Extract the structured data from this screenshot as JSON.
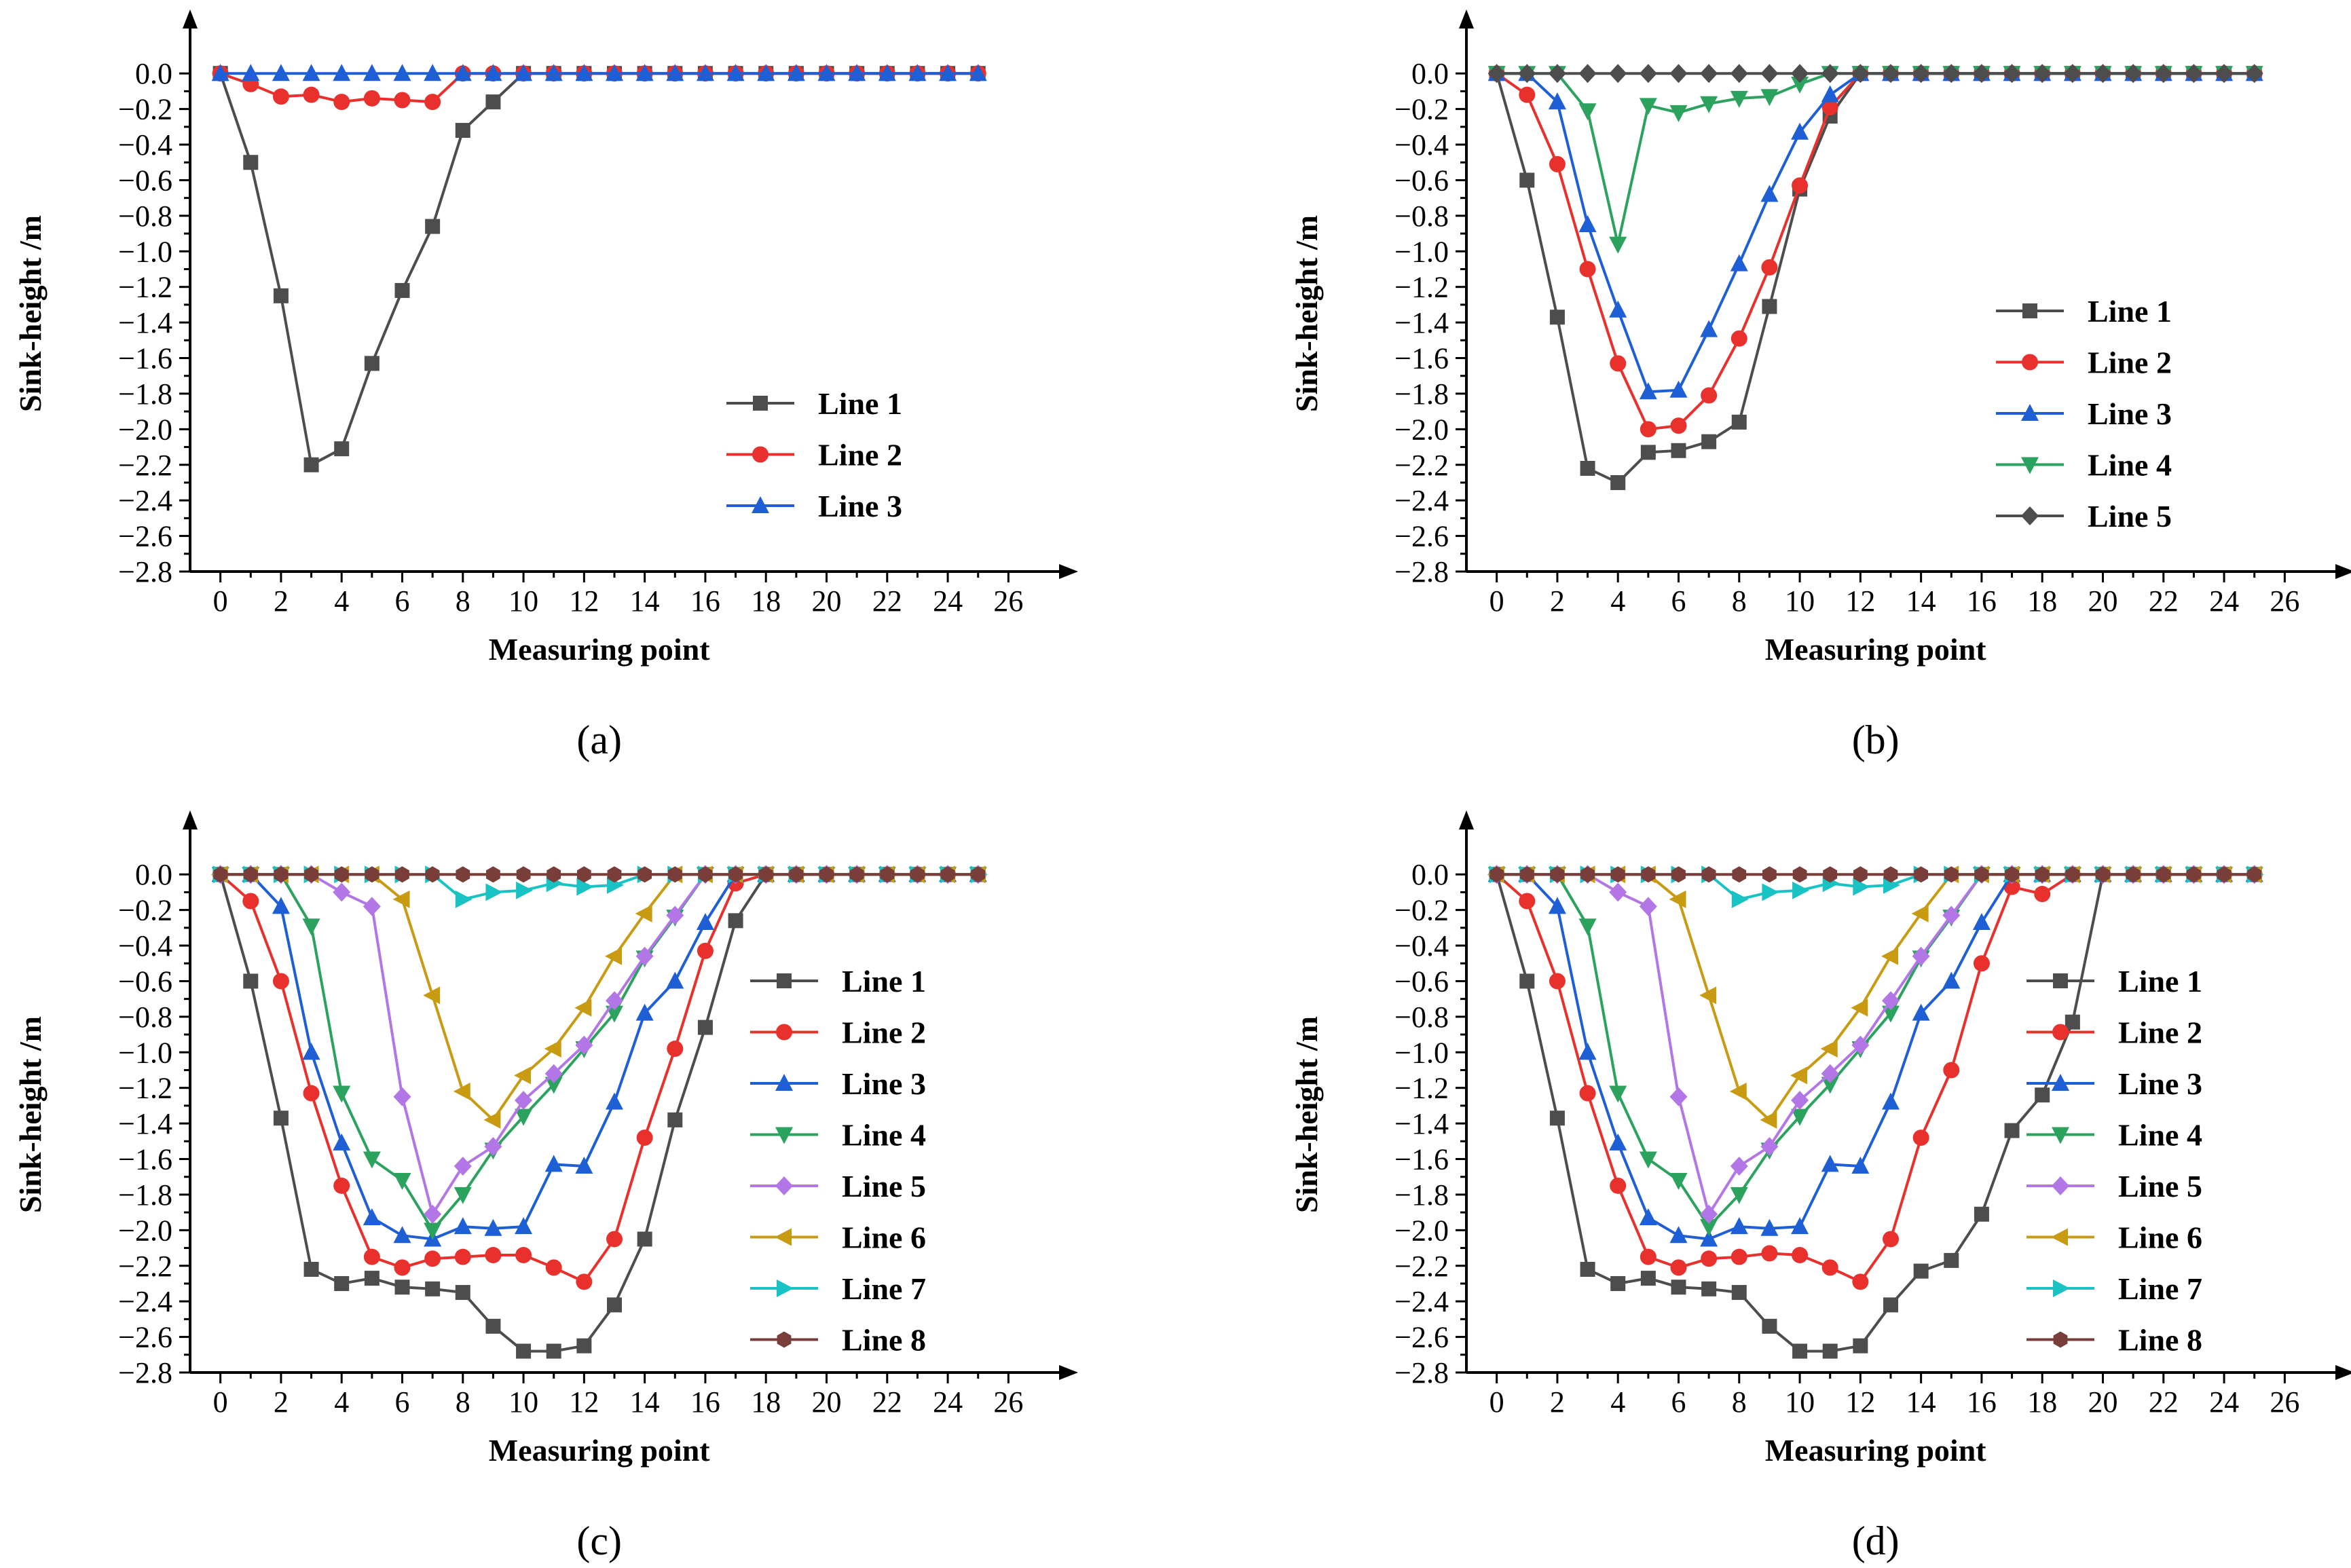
{
  "chart_data": [
    {
      "type": "line",
      "panel_label": "(a)",
      "xlabel": "Measuring point",
      "ylabel": "Sink-height /m",
      "xlim": [
        -1,
        27
      ],
      "ylim": [
        -2.8,
        0.1
      ],
      "xticks": [
        "0",
        "2",
        "4",
        "6",
        "8",
        "10",
        "12",
        "14",
        "16",
        "18",
        "20",
        "22",
        "24",
        "26"
      ],
      "yticks": [
        "0.0",
        "-0.2",
        "-0.4",
        "-0.6",
        "-0.8",
        "-1.0",
        "-1.2",
        "-1.4",
        "-1.6",
        "-1.8",
        "-2.0",
        "-2.2",
        "-2.4",
        "-2.6",
        "-2.8"
      ],
      "legend_position": "right",
      "x": [
        0,
        1,
        2,
        3,
        4,
        5,
        6,
        7,
        8,
        9,
        10,
        11,
        12,
        13,
        14,
        15,
        16,
        17,
        18,
        19,
        20,
        21,
        22,
        23,
        24,
        25
      ],
      "series": [
        {
          "name": "Line 1",
          "color": "#4d4d4d",
          "marker": "square",
          "values": [
            0,
            -0.5,
            -1.25,
            -2.2,
            -2.11,
            -1.63,
            -1.22,
            -0.86,
            -0.32,
            -0.16,
            0,
            0,
            0,
            0,
            0,
            0,
            0,
            0,
            0,
            0,
            0,
            0,
            0,
            0,
            0,
            0
          ]
        },
        {
          "name": "Line 2",
          "color": "#e8302c",
          "marker": "circle",
          "values": [
            0,
            -0.06,
            -0.13,
            -0.12,
            -0.16,
            -0.14,
            -0.15,
            -0.16,
            0,
            0,
            0,
            0,
            0,
            0,
            0,
            0,
            0,
            0,
            0,
            0,
            0,
            0,
            0,
            0,
            0,
            0
          ]
        },
        {
          "name": "Line 3",
          "color": "#1f5fd6",
          "marker": "triangle-up",
          "values": [
            0,
            0,
            0,
            0,
            0,
            0,
            0,
            0,
            0,
            0,
            0,
            0,
            0,
            0,
            0,
            0,
            0,
            0,
            0,
            0,
            0,
            0,
            0,
            0,
            0,
            0
          ]
        }
      ]
    },
    {
      "type": "line",
      "panel_label": "(b)",
      "xlabel": "Measuring point",
      "ylabel": "Sink-height /m",
      "xlim": [
        -1,
        27
      ],
      "ylim": [
        -2.8,
        0.1
      ],
      "xticks": [
        "0",
        "2",
        "4",
        "6",
        "8",
        "10",
        "12",
        "14",
        "16",
        "18",
        "20",
        "22",
        "24",
        "26"
      ],
      "yticks": [
        "0.0",
        "-0.2",
        "-0.4",
        "-0.6",
        "-0.8",
        "-1.0",
        "-1.2",
        "-1.4",
        "-1.6",
        "-1.8",
        "-2.0",
        "-2.2",
        "-2.4",
        "-2.6",
        "-2.8"
      ],
      "legend_position": "right",
      "x": [
        0,
        1,
        2,
        3,
        4,
        5,
        6,
        7,
        8,
        9,
        10,
        11,
        12,
        13,
        14,
        15,
        16,
        17,
        18,
        19,
        20,
        21,
        22,
        23,
        24,
        25
      ],
      "series": [
        {
          "name": "Line 1",
          "color": "#4d4d4d",
          "marker": "square",
          "values": [
            0,
            -0.6,
            -1.37,
            -2.22,
            -2.3,
            -2.13,
            -2.12,
            -2.07,
            -1.96,
            -1.31,
            -0.65,
            -0.24,
            0,
            0,
            0,
            0,
            0,
            0,
            0,
            0,
            0,
            0,
            0,
            0,
            0,
            0
          ]
        },
        {
          "name": "Line 2",
          "color": "#e8302c",
          "marker": "circle",
          "values": [
            0,
            -0.12,
            -0.51,
            -1.1,
            -1.63,
            -2.0,
            -1.98,
            -1.81,
            -1.49,
            -1.09,
            -0.63,
            -0.19,
            0,
            0,
            0,
            0,
            0,
            0,
            0,
            0,
            0,
            0,
            0,
            0,
            0,
            0
          ]
        },
        {
          "name": "Line 3",
          "color": "#1f5fd6",
          "marker": "triangle-up",
          "values": [
            0,
            0,
            -0.16,
            -0.85,
            -1.33,
            -1.79,
            -1.78,
            -1.44,
            -1.07,
            -0.68,
            -0.33,
            -0.12,
            0,
            0,
            0,
            0,
            0,
            0,
            0,
            0,
            0,
            0,
            0,
            0,
            0,
            0
          ]
        },
        {
          "name": "Line 4",
          "color": "#2ca25f",
          "marker": "triangle-down",
          "values": [
            0,
            0,
            0,
            -0.21,
            -0.96,
            -0.18,
            -0.22,
            -0.17,
            -0.14,
            -0.13,
            -0.06,
            0,
            0,
            0,
            0,
            0,
            0,
            0,
            0,
            0,
            0,
            0,
            0,
            0,
            0,
            0
          ]
        },
        {
          "name": "Line 5",
          "color": "#4d4d4d",
          "marker": "diamond",
          "values": [
            0,
            0,
            0,
            0,
            0,
            0,
            0,
            0,
            0,
            0,
            0,
            0,
            0,
            0,
            0,
            0,
            0,
            0,
            0,
            0,
            0,
            0,
            0,
            0,
            0,
            0
          ]
        }
      ]
    },
    {
      "type": "line",
      "panel_label": "(c)",
      "xlabel": "Measuring point",
      "ylabel": "Sink-height /m",
      "xlim": [
        -1,
        27
      ],
      "ylim": [
        -2.8,
        0.1
      ],
      "xticks": [
        "0",
        "2",
        "4",
        "6",
        "8",
        "10",
        "12",
        "14",
        "16",
        "18",
        "20",
        "22",
        "24",
        "26"
      ],
      "yticks": [
        "0.0",
        "-0.2",
        "-0.4",
        "-0.6",
        "-0.8",
        "-1.0",
        "-1.2",
        "-1.4",
        "-1.6",
        "-1.8",
        "-2.0",
        "-2.2",
        "-2.4",
        "-2.6",
        "-2.8"
      ],
      "legend_position": "right",
      "x": [
        0,
        1,
        2,
        3,
        4,
        5,
        6,
        7,
        8,
        9,
        10,
        11,
        12,
        13,
        14,
        15,
        16,
        17,
        18,
        19,
        20,
        21,
        22,
        23,
        24,
        25
      ],
      "series": [
        {
          "name": "Line 1",
          "color": "#4d4d4d",
          "marker": "square",
          "values": [
            0,
            -0.6,
            -1.37,
            -2.22,
            -2.3,
            -2.27,
            -2.32,
            -2.33,
            -2.35,
            -2.54,
            -2.68,
            -2.68,
            -2.65,
            -2.42,
            -2.05,
            -1.38,
            -0.86,
            -0.26,
            0,
            0,
            0,
            0,
            0,
            0,
            0,
            0
          ]
        },
        {
          "name": "Line 2",
          "color": "#e8302c",
          "marker": "circle",
          "values": [
            0,
            -0.15,
            -0.6,
            -1.23,
            -1.75,
            -2.15,
            -2.21,
            -2.16,
            -2.15,
            -2.14,
            -2.14,
            -2.21,
            -2.29,
            -2.05,
            -1.48,
            -0.98,
            -0.43,
            -0.05,
            0,
            0,
            0,
            0,
            0,
            0,
            0,
            0
          ]
        },
        {
          "name": "Line 3",
          "color": "#1f5fd6",
          "marker": "triangle-up",
          "values": [
            0,
            0,
            -0.18,
            -1.0,
            -1.51,
            -1.93,
            -2.03,
            -2.05,
            -1.98,
            -1.99,
            -1.98,
            -1.63,
            -1.64,
            -1.28,
            -0.78,
            -0.6,
            -0.27,
            0,
            0,
            0,
            0,
            0,
            0,
            0,
            0,
            0
          ]
        },
        {
          "name": "Line 4",
          "color": "#2ca25f",
          "marker": "triangle-down",
          "values": [
            0,
            0,
            0,
            -0.29,
            -1.23,
            -1.6,
            -1.72,
            -2.0,
            -1.8,
            -1.55,
            -1.36,
            -1.18,
            -0.98,
            -0.78,
            -0.47,
            -0.24,
            0,
            0,
            0,
            0,
            0,
            0,
            0,
            0,
            0,
            0
          ]
        },
        {
          "name": "Line 5",
          "color": "#b276e6",
          "marker": "diamond",
          "values": [
            0,
            0,
            0,
            0,
            -0.1,
            -0.18,
            -1.25,
            -1.91,
            -1.64,
            -1.53,
            -1.27,
            -1.12,
            -0.96,
            -0.71,
            -0.46,
            -0.23,
            0,
            0,
            0,
            0,
            0,
            0,
            0,
            0,
            0,
            0
          ]
        },
        {
          "name": "Line 6",
          "color": "#c89b12",
          "marker": "triangle-left",
          "values": [
            0,
            0,
            0,
            0,
            0,
            0,
            -0.14,
            -0.68,
            -1.22,
            -1.38,
            -1.13,
            -0.98,
            -0.75,
            -0.46,
            -0.22,
            0,
            0,
            0,
            0,
            0,
            0,
            0,
            0,
            0,
            0,
            0
          ]
        },
        {
          "name": "Line 7",
          "color": "#19c3c3",
          "marker": "triangle-right",
          "values": [
            0,
            0,
            0,
            0,
            0,
            0,
            0,
            0,
            -0.14,
            -0.1,
            -0.09,
            -0.05,
            -0.07,
            -0.06,
            0,
            0,
            0,
            0,
            0,
            0,
            0,
            0,
            0,
            0,
            0,
            0
          ]
        },
        {
          "name": "Line 8",
          "color": "#7a3e3a",
          "marker": "hexagon",
          "values": [
            0,
            0,
            0,
            0,
            0,
            0,
            0,
            0,
            0,
            0,
            0,
            0,
            0,
            0,
            0,
            0,
            0,
            0,
            0,
            0,
            0,
            0,
            0,
            0,
            0,
            0
          ]
        }
      ]
    },
    {
      "type": "line",
      "panel_label": "(d)",
      "xlabel": "Measuring point",
      "ylabel": "Sink-height /m",
      "xlim": [
        -1,
        27
      ],
      "ylim": [
        -2.8,
        0.1
      ],
      "xticks": [
        "0",
        "2",
        "4",
        "6",
        "8",
        "10",
        "12",
        "14",
        "16",
        "18",
        "20",
        "22",
        "24",
        "26"
      ],
      "yticks": [
        "0.0",
        "-0.2",
        "-0.4",
        "-0.6",
        "-0.8",
        "-1.0",
        "-1.2",
        "-1.4",
        "-1.6",
        "-1.8",
        "-2.0",
        "-2.2",
        "-2.4",
        "-2.6",
        "-2.8"
      ],
      "legend_position": "right",
      "x": [
        0,
        1,
        2,
        3,
        4,
        5,
        6,
        7,
        8,
        9,
        10,
        11,
        12,
        13,
        14,
        15,
        16,
        17,
        18,
        19,
        20,
        21,
        22,
        23,
        24,
        25
      ],
      "series": [
        {
          "name": "Line 1",
          "color": "#4d4d4d",
          "marker": "square",
          "values": [
            0,
            -0.6,
            -1.37,
            -2.22,
            -2.3,
            -2.27,
            -2.32,
            -2.33,
            -2.35,
            -2.54,
            -2.68,
            -2.68,
            -2.65,
            -2.42,
            -2.23,
            -2.17,
            -1.91,
            -1.44,
            -1.24,
            -0.83,
            0,
            0,
            0,
            0,
            0,
            0
          ]
        },
        {
          "name": "Line 2",
          "color": "#e8302c",
          "marker": "circle",
          "values": [
            0,
            -0.15,
            -0.6,
            -1.23,
            -1.75,
            -2.15,
            -2.21,
            -2.16,
            -2.15,
            -2.13,
            -2.14,
            -2.21,
            -2.29,
            -2.05,
            -1.48,
            -1.1,
            -0.5,
            -0.07,
            -0.11,
            0,
            0,
            0,
            0,
            0,
            0,
            0
          ]
        },
        {
          "name": "Line 3",
          "color": "#1f5fd6",
          "marker": "triangle-up",
          "values": [
            0,
            0,
            -0.18,
            -1.0,
            -1.51,
            -1.93,
            -2.03,
            -2.05,
            -1.98,
            -1.99,
            -1.98,
            -1.63,
            -1.64,
            -1.28,
            -0.78,
            -0.6,
            -0.27,
            0,
            0,
            0,
            0,
            0,
            0,
            0,
            0,
            0
          ]
        },
        {
          "name": "Line 4",
          "color": "#2ca25f",
          "marker": "triangle-down",
          "values": [
            0,
            0,
            0,
            -0.29,
            -1.23,
            -1.6,
            -1.72,
            -1.98,
            -1.8,
            -1.55,
            -1.36,
            -1.18,
            -0.98,
            -0.78,
            -0.47,
            -0.24,
            0,
            0,
            0,
            0,
            0,
            0,
            0,
            0,
            0,
            0
          ]
        },
        {
          "name": "Line 5",
          "color": "#b276e6",
          "marker": "diamond",
          "values": [
            0,
            0,
            0,
            0,
            -0.1,
            -0.18,
            -1.25,
            -1.91,
            -1.64,
            -1.53,
            -1.27,
            -1.12,
            -0.96,
            -0.71,
            -0.46,
            -0.23,
            0,
            0,
            0,
            0,
            0,
            0,
            0,
            0,
            0,
            0
          ]
        },
        {
          "name": "Line 6",
          "color": "#c89b12",
          "marker": "triangle-left",
          "values": [
            0,
            0,
            0,
            0,
            0,
            0,
            -0.14,
            -0.68,
            -1.22,
            -1.38,
            -1.13,
            -0.98,
            -0.75,
            -0.46,
            -0.22,
            0,
            0,
            0,
            0,
            0,
            0,
            0,
            0,
            0,
            0,
            0
          ]
        },
        {
          "name": "Line 7",
          "color": "#19c3c3",
          "marker": "triangle-right",
          "values": [
            0,
            0,
            0,
            0,
            0,
            0,
            0,
            0,
            -0.14,
            -0.1,
            -0.09,
            -0.05,
            -0.07,
            -0.06,
            0,
            0,
            0,
            0,
            0,
            0,
            0,
            0,
            0,
            0,
            0,
            0
          ]
        },
        {
          "name": "Line 8",
          "color": "#7a3e3a",
          "marker": "hexagon",
          "values": [
            0,
            0,
            0,
            0,
            0,
            0,
            0,
            0,
            0,
            0,
            0,
            0,
            0,
            0,
            0,
            0,
            0,
            0,
            0,
            0,
            0,
            0,
            0,
            0,
            0,
            0
          ]
        }
      ]
    }
  ]
}
